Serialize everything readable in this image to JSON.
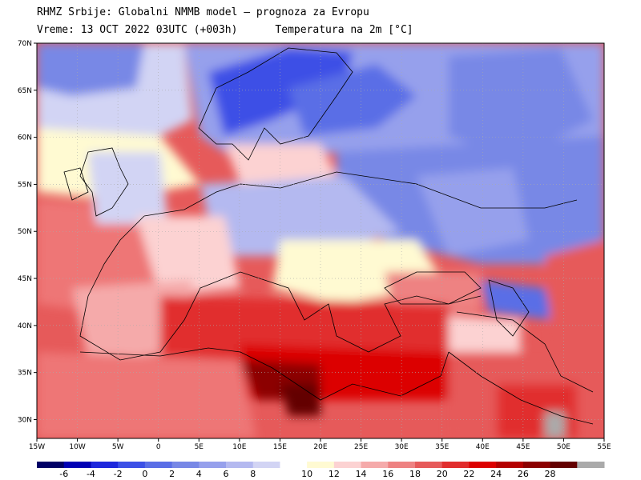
{
  "header": {
    "title": "RHMZ Srbije: Globalni NMMB model — prognoza za Evropu",
    "valid_time": "Vreme: 13 OCT 2022 03UTC (+003h)",
    "field": "Temperatura na 2m [°C]"
  },
  "axes": {
    "lat_labels": [
      "70N",
      "65N",
      "60N",
      "55N",
      "50N",
      "45N",
      "40N",
      "35N",
      "30N"
    ],
    "lon_labels": [
      "15W",
      "10W",
      "5W",
      "0",
      "5E",
      "10E",
      "15E",
      "20E",
      "25E",
      "30E",
      "35E",
      "40E",
      "45E",
      "50E",
      "55E"
    ]
  },
  "colorbar": {
    "labels": [
      "-6",
      "-4",
      "-2",
      "0",
      "2",
      "4",
      "6",
      "8",
      "10",
      "12",
      "14",
      "16",
      "18",
      "20",
      "22",
      "24",
      "26",
      "28"
    ],
    "colors": [
      "#000066",
      "#0000b4",
      "#1e28dc",
      "#3c50e6",
      "#5a6ee6",
      "#7888e6",
      "#96a0ec",
      "#b4b9f0",
      "#d2d4f4",
      "#ffffff",
      "#fffad2",
      "#fcd2d2",
      "#f5aaaa",
      "#ee8282",
      "#e65a5a",
      "#e12d2d",
      "#dc0000",
      "#b40000",
      "#8c0000",
      "#640000",
      "#aaaaaa"
    ]
  }
}
